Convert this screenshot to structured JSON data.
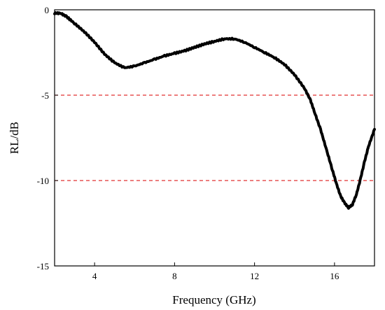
{
  "chart_data": {
    "type": "line",
    "xlabel": "Frequency (GHz)",
    "ylabel": "RL/dB",
    "xlim": [
      2,
      18
    ],
    "ylim": [
      -15,
      0
    ],
    "x_ticks": [
      4,
      8,
      12,
      16
    ],
    "y_ticks": [
      0,
      -5,
      -10,
      -15
    ],
    "grid": false,
    "reference_lines": [
      {
        "y": -5,
        "color": "#e03030",
        "style": "dashed"
      },
      {
        "y": -10,
        "color": "#e03030",
        "style": "dashed"
      }
    ],
    "series": [
      {
        "color": "#000000",
        "x": [
          2.0,
          2.3,
          2.6,
          3.0,
          3.5,
          4.0,
          4.5,
          5.0,
          5.5,
          6.0,
          6.5,
          7.0,
          7.5,
          8.0,
          8.5,
          9.0,
          9.5,
          10.0,
          10.5,
          11.0,
          11.5,
          12.0,
          12.5,
          13.0,
          13.5,
          14.0,
          14.5,
          14.8,
          15.0,
          15.3,
          15.6,
          15.9,
          16.1,
          16.3,
          16.5,
          16.7,
          16.9,
          17.1,
          17.3,
          17.5,
          17.7,
          18.0
        ],
        "y": [
          -0.2,
          -0.2,
          -0.4,
          -0.8,
          -1.3,
          -1.9,
          -2.6,
          -3.1,
          -3.4,
          -3.3,
          -3.1,
          -2.9,
          -2.7,
          -2.55,
          -2.4,
          -2.2,
          -2.0,
          -1.85,
          -1.7,
          -1.7,
          -1.9,
          -2.2,
          -2.5,
          -2.8,
          -3.2,
          -3.8,
          -4.6,
          -5.3,
          -6.0,
          -7.0,
          -8.2,
          -9.4,
          -10.2,
          -10.9,
          -11.3,
          -11.6,
          -11.4,
          -10.8,
          -9.9,
          -8.9,
          -8.0,
          -7.0
        ]
      }
    ]
  }
}
